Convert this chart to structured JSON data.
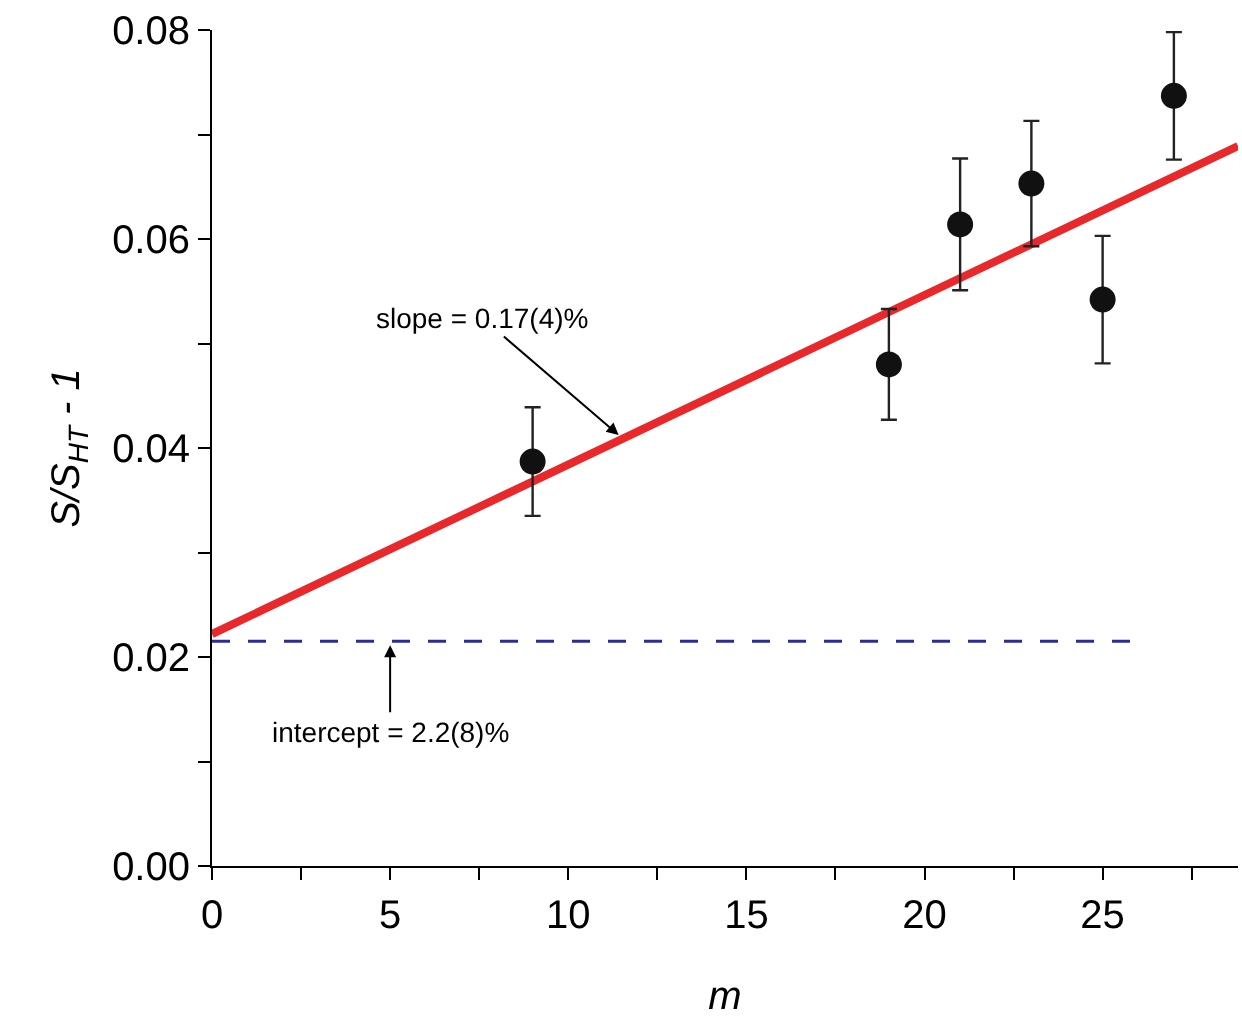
{
  "chart_data": {
    "type": "scatter",
    "xlabel": "m",
    "ylabel": "S/S$_{HT}$ - 1",
    "xlim": [
      0,
      28.8
    ],
    "ylim": [
      0,
      0.08
    ],
    "xticks": [
      0,
      {
        "value": 2.5,
        "label": null
      },
      5,
      {
        "value": 7.5,
        "label": null
      },
      10,
      {
        "value": 12.5,
        "label": null
      },
      15,
      {
        "value": 17.5,
        "label": null
      },
      20,
      {
        "value": 22.5,
        "label": null
      },
      25,
      {
        "value": 27.5,
        "label": null
      }
    ],
    "yticks": [
      {
        "value": 0,
        "label": "0.00"
      },
      {
        "value": 0.01,
        "label": null
      },
      {
        "value": 0.02,
        "label": "0.02"
      },
      {
        "value": 0.03,
        "label": null
      },
      {
        "value": 0.04,
        "label": "0.04"
      },
      {
        "value": 0.05,
        "label": null
      },
      {
        "value": 0.06,
        "label": "0.06"
      },
      {
        "value": 0.07,
        "label": null
      },
      {
        "value": 0.08,
        "label": "0.08"
      }
    ],
    "grid": false,
    "marker": "circle",
    "series": [
      {
        "type": "line",
        "color": "#e8282b",
        "x": [
          0,
          28.8
        ],
        "values": [
          0.0222,
          0.0689
        ],
        "line_style": "solid",
        "marker": "none"
      },
      {
        "type": "line",
        "color": "#2b2b9c",
        "x": [
          0,
          25.8
        ],
        "values": [
          0.0215,
          0.0215
        ],
        "line_style": "dashed",
        "marker": "none"
      },
      {
        "color": "#111111",
        "x": [
          9,
          19,
          21,
          23,
          25,
          27
        ],
        "values": [
          0.0387,
          0.048,
          0.0614,
          0.0653,
          0.0542,
          0.0737
        ],
        "errors": [
          0.0052,
          0.0053,
          0.0063,
          0.006,
          0.0061,
          0.0061
        ]
      }
    ],
    "annotations": [
      {
        "text": "slope = 0.17(4)%",
        "x": 11.5,
        "y": 0.041
      },
      {
        "text": "intercept = 2.2(8)%",
        "x": 5,
        "y": 0.0215
      }
    ]
  }
}
